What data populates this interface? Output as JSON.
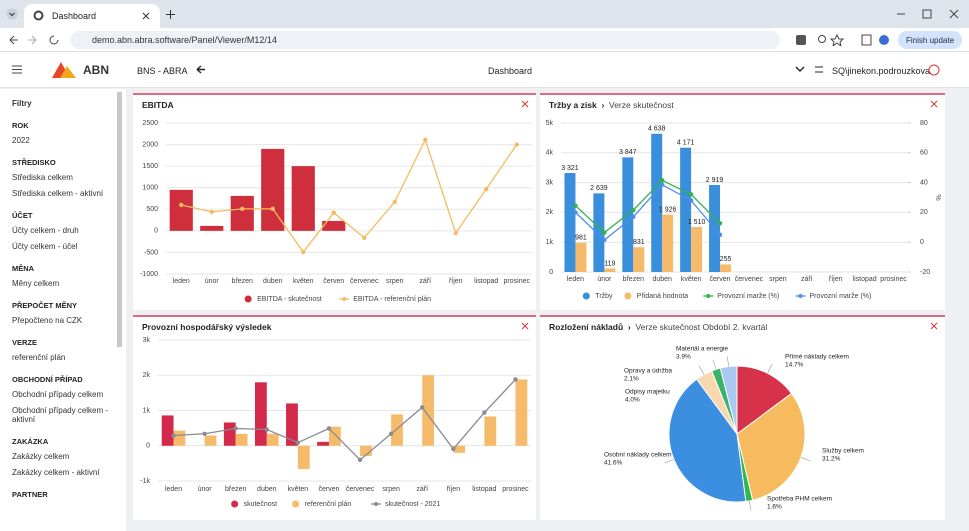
{
  "browser": {
    "tab_title": "Dashboard",
    "url": "demo.abn.abra.software/Panel/Viewer/M12/14",
    "update_button": "Finish update"
  },
  "header": {
    "logo": "ABN",
    "company": "BNS - ABRA",
    "title": "Dashboard",
    "user": "SQ\\jinekon.podrouzkova"
  },
  "sidebar": {
    "title": "Filtry",
    "sections": [
      {
        "heading": "ROK",
        "items": [
          "2022"
        ]
      },
      {
        "heading": "STŘEDISKO",
        "items": [
          "Střediska celkem",
          "Střediska celkem - aktivní"
        ]
      },
      {
        "heading": "ÚČET",
        "items": [
          "Účty celkem - druh",
          "Účty celkem - účel"
        ]
      },
      {
        "heading": "MĚNA",
        "items": [
          "Měny celkem"
        ]
      },
      {
        "heading": "PŘEPOČET MĚNY",
        "items": [
          "Přepočteno na CZK"
        ]
      },
      {
        "heading": "VERZE",
        "items": [
          "referenční plán"
        ]
      },
      {
        "heading": "OBCHODNÍ PŘÍPAD",
        "items": [
          "Obchodní případy celkem",
          "Obchodní případy celkem - aktivní"
        ]
      },
      {
        "heading": "ZAKÁZKA",
        "items": [
          "Zakázky celkem",
          "Zakázky celkem - aktivní"
        ]
      },
      {
        "heading": "PARTNER",
        "items": []
      }
    ]
  },
  "chart_data": [
    {
      "type": "bar",
      "title": "EBITDA",
      "categories": [
        "leden",
        "únor",
        "březen",
        "duben",
        "květen",
        "červen",
        "červenec",
        "srpen",
        "září",
        "říjen",
        "listopad",
        "prosinec"
      ],
      "series": [
        {
          "name": "EBITDA - skutečnost",
          "type": "bar",
          "color": "#cf2f3c",
          "values": [
            950,
            115,
            810,
            1900,
            1500,
            230,
            null,
            null,
            null,
            null,
            null,
            null
          ]
        },
        {
          "name": "EBITDA - referenční plán",
          "type": "line",
          "color": "#f6bb5e",
          "values": [
            600,
            440,
            510,
            510,
            -490,
            420,
            -160,
            670,
            2110,
            -50,
            970,
            2000
          ]
        }
      ],
      "ylim": [
        -1000,
        2500
      ],
      "yticks": [
        -1000,
        -500,
        0,
        500,
        1000,
        1500,
        2000,
        2500
      ],
      "grid": true
    },
    {
      "type": "bar",
      "title": "Tržby a zisk",
      "subtitle": "Verze skutečnost",
      "categories": [
        "leden",
        "únor",
        "březen",
        "duben",
        "květen",
        "červen",
        "červenec",
        "srpen",
        "září",
        "říjen",
        "listopad",
        "prosinec"
      ],
      "series": [
        {
          "name": "Tržby",
          "type": "bar",
          "color": "#3a8fdc",
          "values": [
            3321,
            2639,
            3847,
            4638,
            4171,
            2919,
            null,
            null,
            null,
            null,
            null,
            null
          ],
          "value_labels": [
            "3 321",
            "2 639",
            "3 847",
            "4 638",
            "4 171",
            "2 919",
            null,
            null,
            null,
            null,
            null,
            null
          ]
        },
        {
          "name": "Přidaná hodnota",
          "type": "bar",
          "color": "#f6bb6a",
          "values": [
            981,
            119,
            831,
            1926,
            1510,
            255,
            null,
            null,
            null,
            null,
            null,
            null
          ],
          "value_labels": [
            "981",
            "119",
            "831",
            "1 926",
            "1 510",
            "255",
            null,
            null,
            null,
            null,
            null,
            null
          ]
        },
        {
          "name": "Provozní marže (%)",
          "type": "line",
          "axis": "y2",
          "color": "#2fb548",
          "values": [
            24.5,
            6.5,
            21.6,
            41.5,
            32.1,
            12.7,
            null,
            null,
            null,
            null,
            null,
            null
          ]
        },
        {
          "name": "Provozní marže (%)",
          "type": "line",
          "axis": "y2",
          "color": "#4d8fe6",
          "values": [
            20.0,
            1.5,
            17.0,
            38.5,
            28.0,
            5.0,
            null,
            null,
            null,
            null,
            null,
            null
          ]
        }
      ],
      "ylim": [
        0,
        5000
      ],
      "yticks": [
        0,
        {
          "value": 1000,
          "label": "1k"
        },
        {
          "value": 2000,
          "label": "2k"
        },
        {
          "value": 3000,
          "label": "3k"
        },
        {
          "value": 4000,
          "label": "4k"
        },
        {
          "value": 5000,
          "label": "5k"
        }
      ],
      "y2lim": [
        -20,
        80
      ],
      "y2ticks": [
        -20,
        0,
        20,
        40,
        60,
        80
      ],
      "y2_label": "%",
      "grid": true
    },
    {
      "type": "bar",
      "title": "Provozní hospodářský výsledek",
      "categories": [
        "leden",
        "únor",
        "březen",
        "duben",
        "květen",
        "červen",
        "červenec",
        "srpen",
        "září",
        "říjen",
        "listopad",
        "prosinec"
      ],
      "series": [
        {
          "name": "skutečnost",
          "type": "bar",
          "color": "#d3294a",
          "values": [
            860,
            null,
            660,
            1800,
            1200,
            110,
            null,
            null,
            null,
            null,
            null,
            null
          ]
        },
        {
          "name": "referenční plán",
          "type": "bar",
          "color": "#f6bb6a",
          "values": [
            430,
            290,
            340,
            340,
            -660,
            540,
            -290,
            890,
            2000,
            -200,
            830,
            1880
          ]
        },
        {
          "name": "skutečnost - 2021",
          "type": "line",
          "color": "#8a8a95",
          "values": [
            290,
            340,
            490,
            460,
            90,
            490,
            -400,
            340,
            1090,
            -90,
            940,
            1880
          ]
        }
      ],
      "ylim": [
        -1000,
        3000
      ],
      "yticks": [
        {
          "value": -1000,
          "label": "-1k"
        },
        0,
        {
          "value": 1000,
          "label": "1k"
        },
        {
          "value": 2000,
          "label": "2k"
        },
        {
          "value": 3000,
          "label": "3k"
        }
      ],
      "grid": true
    },
    {
      "type": "pie",
      "title": "Rozložení nákladů",
      "subtitle": "Verze skutečnost Období 2. kvartál",
      "categories": [
        "Přímé náklady celkem",
        "Služby celkem",
        "Spotřeba PHM celkem",
        "Osobní náklady celkem",
        "Odpisy majetku",
        "Opravy a údržba",
        "Materiál a energie"
      ],
      "values": [
        14.7,
        31.2,
        1.6,
        41.6,
        4.0,
        2.1,
        3.9
      ],
      "value_labels": [
        "14.7%",
        "31.2%",
        "1.6%",
        "41.6%",
        "4.0%",
        "2.1%",
        "3.9%"
      ],
      "colors": [
        "#d6334b",
        "#f6bb5e",
        "#2db84d",
        "#3c8fe0",
        "#f9d8b0",
        "#3ab26a",
        "#a9c8f2"
      ]
    }
  ]
}
